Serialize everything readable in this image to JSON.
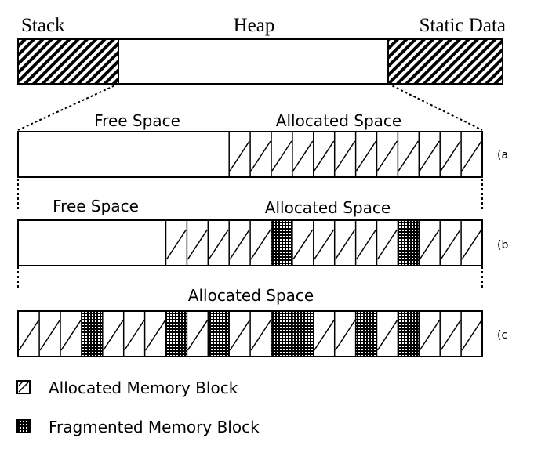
{
  "memory_layout": {
    "labels": {
      "stack": "Stack",
      "heap": "Heap",
      "static_data": "Static Data"
    }
  },
  "row_a": {
    "free_label": "Free Space",
    "allocated_label": "Allocated Space",
    "tag": "(a",
    "free_blocks": 11,
    "blocks": [
      "A",
      "A",
      "A",
      "A",
      "A",
      "A",
      "A",
      "A",
      "A",
      "A",
      "A",
      "A"
    ]
  },
  "row_b": {
    "free_label": "Free Space",
    "allocated_label": "Allocated Space",
    "tag": "(b",
    "free_blocks": 7,
    "blocks": [
      "A",
      "A",
      "A",
      "A",
      "A",
      "F",
      "A",
      "A",
      "A",
      "A",
      "A",
      "F",
      "A",
      "A",
      "A"
    ]
  },
  "row_c": {
    "allocated_label": "Allocated Space",
    "tag": "(c",
    "free_blocks": 0,
    "blocks": [
      "A",
      "A",
      "A",
      "F",
      "A",
      "A",
      "A",
      "F",
      "A",
      "F",
      "A",
      "A",
      "F",
      "F",
      "A",
      "A",
      "F",
      "A",
      "F",
      "A",
      "A",
      "A"
    ]
  },
  "legend": {
    "allocated": "Allocated Memory Block",
    "fragmented": "Fragmented Memory Block"
  },
  "colors": {
    "line": "#000000",
    "background": "#ffffff"
  }
}
